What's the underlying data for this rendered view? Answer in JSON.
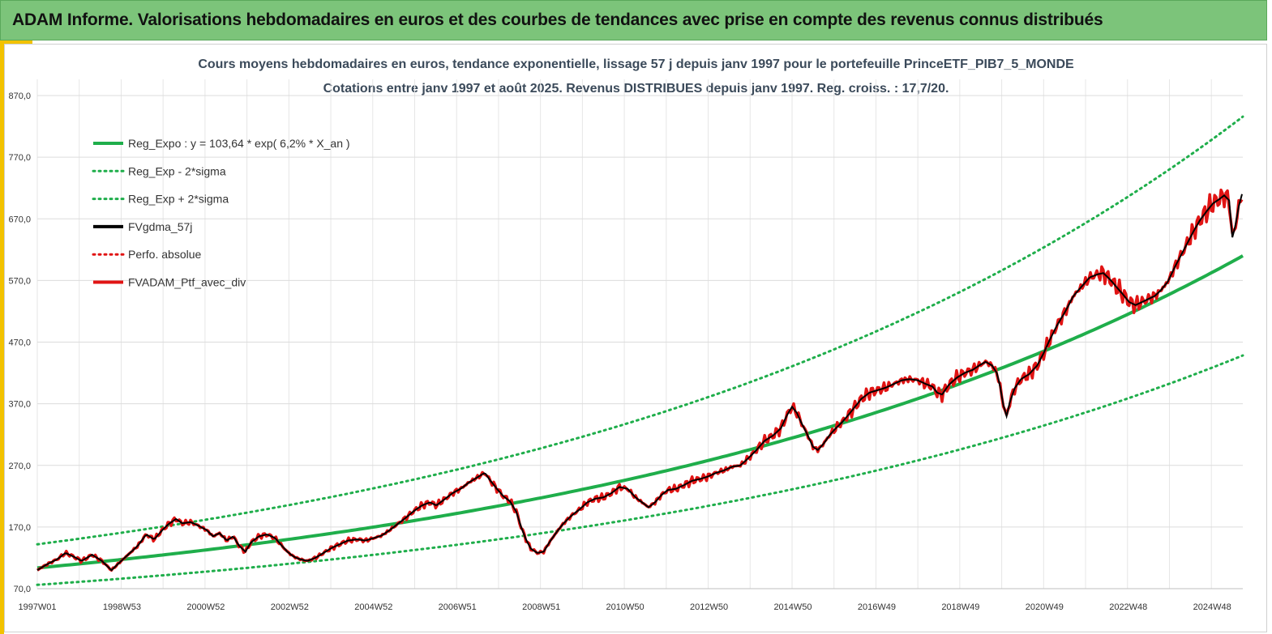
{
  "header": {
    "title": "ADAM Informe. Valorisations hebdomadaires en euros et des courbes de tendances avec prise en compte des revenus connus distribués"
  },
  "chart_data": {
    "type": "line",
    "title": "Cours moyens hebdomadaires  en euros, tendance exponentielle, lissage 57 j depuis janv 1997 pour le portefeuille PrinceETF_PIB7_5_MONDE",
    "subtitle": "Cotations entre janv 1997 et août 2025. Revenus DISTRIBUES depuis janv 1997. Reg. croiss. : 17,7/20.",
    "xlabel": "",
    "ylabel": "",
    "ylim": [
      70,
      870
    ],
    "xlim": [
      0,
      1495
    ],
    "grid": true,
    "legend_position": "top-left",
    "y_ticks": [
      "870,0",
      "770,0",
      "670,0",
      "570,0",
      "470,0",
      "370,0",
      "270,0",
      "170,0",
      "70,0"
    ],
    "x_ticks": [
      {
        "label": "1997W01",
        "x": 0
      },
      {
        "label": "1998W53",
        "x": 105
      },
      {
        "label": "2000W52",
        "x": 209
      },
      {
        "label": "2002W52",
        "x": 313
      },
      {
        "label": "2004W52",
        "x": 417
      },
      {
        "label": "2006W51",
        "x": 521
      },
      {
        "label": "2008W51",
        "x": 625
      },
      {
        "label": "2010W50",
        "x": 729
      },
      {
        "label": "2012W50",
        "x": 833
      },
      {
        "label": "2014W50",
        "x": 937
      },
      {
        "label": "2016W49",
        "x": 1041
      },
      {
        "label": "2018W49",
        "x": 1145
      },
      {
        "label": "2020W49",
        "x": 1249
      },
      {
        "label": "2022W48",
        "x": 1353
      },
      {
        "label": "2024W48",
        "x": 1457
      }
    ],
    "series": [
      {
        "name": "Reg_Expo : y = 103,64 * exp( 6,2% *  X_an )",
        "color": "#1fae4b",
        "style": "solid",
        "kind": "reg"
      },
      {
        "name": "Reg_Exp - 2*sigma",
        "color": "#1fae4b",
        "style": "dotted",
        "kind": "reg_low"
      },
      {
        "name": "Reg_Exp + 2*sigma",
        "color": "#1fae4b",
        "style": "dotted",
        "kind": "reg_high"
      },
      {
        "name": "FVgdma_57j",
        "color": "#000000",
        "style": "solid",
        "kind": "smooth"
      },
      {
        "name": "Perfo. absolue",
        "color": "#e11414",
        "style": "dotted",
        "kind": "perf"
      },
      {
        "name": "FVADAM_Ptf_avec_div",
        "color": "#e11414",
        "style": "solid",
        "kind": "price",
        "points": [
          [
            0,
            100
          ],
          [
            10,
            108
          ],
          [
            25,
            118
          ],
          [
            35,
            128
          ],
          [
            45,
            122
          ],
          [
            55,
            115
          ],
          [
            68,
            125
          ],
          [
            80,
            115
          ],
          [
            92,
            100
          ],
          [
            100,
            110
          ],
          [
            115,
            128
          ],
          [
            125,
            140
          ],
          [
            135,
            158
          ],
          [
            145,
            150
          ],
          [
            155,
            165
          ],
          [
            163,
            175
          ],
          [
            172,
            183
          ],
          [
            180,
            176
          ],
          [
            190,
            178
          ],
          [
            200,
            172
          ],
          [
            210,
            165
          ],
          [
            218,
            155
          ],
          [
            226,
            160
          ],
          [
            235,
            148
          ],
          [
            243,
            155
          ],
          [
            250,
            140
          ],
          [
            258,
            130
          ],
          [
            265,
            145
          ],
          [
            275,
            155
          ],
          [
            285,
            158
          ],
          [
            295,
            152
          ],
          [
            303,
            140
          ],
          [
            310,
            130
          ],
          [
            318,
            122
          ],
          [
            325,
            118
          ],
          [
            335,
            115
          ],
          [
            345,
            120
          ],
          [
            355,
            128
          ],
          [
            365,
            136
          ],
          [
            375,
            142
          ],
          [
            385,
            148
          ],
          [
            397,
            150
          ],
          [
            407,
            148
          ],
          [
            417,
            152
          ],
          [
            427,
            156
          ],
          [
            437,
            165
          ],
          [
            447,
            175
          ],
          [
            457,
            185
          ],
          [
            467,
            196
          ],
          [
            477,
            205
          ],
          [
            487,
            210
          ],
          [
            495,
            205
          ],
          [
            505,
            215
          ],
          [
            515,
            225
          ],
          [
            525,
            232
          ],
          [
            535,
            242
          ],
          [
            545,
            250
          ],
          [
            555,
            258
          ],
          [
            562,
            245
          ],
          [
            570,
            232
          ],
          [
            578,
            220
          ],
          [
            586,
            212
          ],
          [
            594,
            195
          ],
          [
            600,
            170
          ],
          [
            606,
            150
          ],
          [
            612,
            135
          ],
          [
            620,
            128
          ],
          [
            628,
            130
          ],
          [
            635,
            145
          ],
          [
            643,
            160
          ],
          [
            652,
            175
          ],
          [
            662,
            188
          ],
          [
            672,
            198
          ],
          [
            682,
            210
          ],
          [
            692,
            216
          ],
          [
            702,
            218
          ],
          [
            712,
            225
          ],
          [
            722,
            235
          ],
          [
            732,
            232
          ],
          [
            742,
            218
          ],
          [
            750,
            210
          ],
          [
            758,
            202
          ],
          [
            766,
            210
          ],
          [
            774,
            222
          ],
          [
            782,
            230
          ],
          [
            792,
            232
          ],
          [
            802,
            238
          ],
          [
            812,
            245
          ],
          [
            822,
            248
          ],
          [
            832,
            252
          ],
          [
            842,
            258
          ],
          [
            852,
            262
          ],
          [
            862,
            268
          ],
          [
            872,
            270
          ],
          [
            882,
            282
          ],
          [
            892,
            295
          ],
          [
            902,
            310
          ],
          [
            912,
            318
          ],
          [
            922,
            330
          ],
          [
            930,
            352
          ],
          [
            936,
            365
          ],
          [
            942,
            355
          ],
          [
            948,
            338
          ],
          [
            955,
            320
          ],
          [
            962,
            300
          ],
          [
            968,
            295
          ],
          [
            975,
            305
          ],
          [
            982,
            318
          ],
          [
            990,
            330
          ],
          [
            998,
            340
          ],
          [
            1006,
            352
          ],
          [
            1014,
            365
          ],
          [
            1022,
            378
          ],
          [
            1032,
            388
          ],
          [
            1042,
            392
          ],
          [
            1052,
            396
          ],
          [
            1062,
            402
          ],
          [
            1072,
            408
          ],
          [
            1082,
            410
          ],
          [
            1092,
            408
          ],
          [
            1102,
            402
          ],
          [
            1110,
            398
          ],
          [
            1116,
            388
          ],
          [
            1122,
            385
          ],
          [
            1130,
            400
          ],
          [
            1140,
            412
          ],
          [
            1150,
            420
          ],
          [
            1160,
            425
          ],
          [
            1168,
            432
          ],
          [
            1176,
            438
          ],
          [
            1184,
            432
          ],
          [
            1190,
            420
          ],
          [
            1194,
            398
          ],
          [
            1198,
            368
          ],
          [
            1202,
            350
          ],
          [
            1206,
            372
          ],
          [
            1212,
            395
          ],
          [
            1220,
            410
          ],
          [
            1230,
            418
          ],
          [
            1240,
            432
          ],
          [
            1248,
            452
          ],
          [
            1256,
            475
          ],
          [
            1265,
            498
          ],
          [
            1275,
            520
          ],
          [
            1285,
            545
          ],
          [
            1295,
            560
          ],
          [
            1305,
            575
          ],
          [
            1315,
            580
          ],
          [
            1322,
            582
          ],
          [
            1330,
            572
          ],
          [
            1338,
            560
          ],
          [
            1346,
            548
          ],
          [
            1354,
            535
          ],
          [
            1362,
            530
          ],
          [
            1370,
            535
          ],
          [
            1378,
            540
          ],
          [
            1386,
            545
          ],
          [
            1394,
            555
          ],
          [
            1402,
            568
          ],
          [
            1410,
            590
          ],
          [
            1418,
            610
          ],
          [
            1426,
            630
          ],
          [
            1434,
            650
          ],
          [
            1442,
            668
          ],
          [
            1450,
            682
          ],
          [
            1458,
            695
          ],
          [
            1466,
            702
          ],
          [
            1472,
            708
          ],
          [
            1478,
            700
          ],
          [
            1482,
            640
          ],
          [
            1486,
            660
          ],
          [
            1490,
            690
          ],
          [
            1495,
            715
          ]
        ]
      }
    ]
  }
}
